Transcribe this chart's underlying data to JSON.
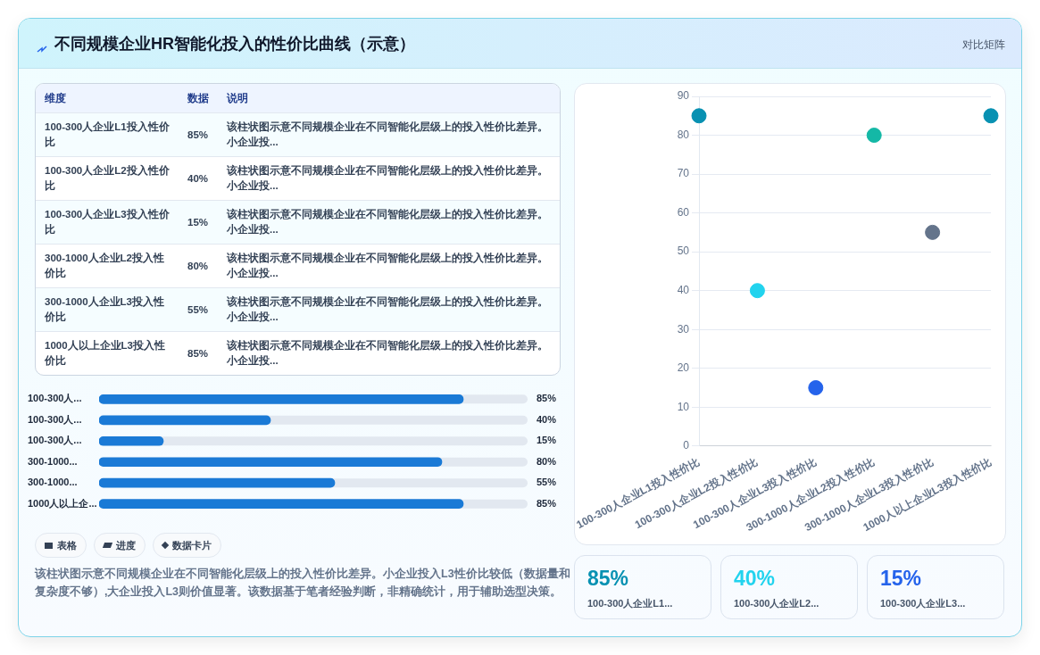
{
  "chart_data": [
    {
      "type": "other",
      "title": "不同规模企业HR智能化投入的性价比曲线（示意）",
      "categories": [
        "100-300人企业L1投入性价比",
        "100-300人企业L2投入性价比",
        "100-300人企业L3投入性价比",
        "300-1000人企业L2投入性价比",
        "300-1000人企业L3投入性价比",
        "1000人以上企业L3投入性价比"
      ],
      "value_labels": [
        "85%",
        "40%",
        "15%",
        "80%",
        "55%",
        "85%"
      ],
      "annotations": [
        "维度",
        "数据",
        "说明",
        "该柱状图示意不同规模企业在不同智能化层级上的投入性价比差异。小企业投...",
        "该柱状图示意不同规模企业在不同智能化层级上的投入性价比差异。小企业投...",
        "该柱状图示意不同规模企业在不同智能化层级上的投入性价比差异。小企业投...",
        "该柱状图示意不同规模企业在不同智能化层级上的投入性价比差异。小企业投...",
        "该柱状图示意不同规模企业在不同智能化层级上的投入性价比差异。小企业投...",
        "该柱状图示意不同规模企业在不同智能化层级上的投入性价比差异。小企业投..."
      ]
    },
    {
      "type": "bar",
      "orientation": "horizontal",
      "categories": [
        "100-300人...",
        "100-300人...",
        "100-300人...",
        "300-1000...",
        "300-1000...",
        "1000人以上企..."
      ],
      "values": [
        85,
        40,
        15,
        80,
        55,
        85
      ],
      "value_labels": [
        "85%",
        "40%",
        "15%",
        "80%",
        "55%",
        "85%"
      ],
      "color": "#1a7ad6",
      "xlim": [
        0,
        100
      ],
      "tick_labels": "y",
      "annotations": [
        "表格",
        "进度",
        "数据卡片",
        "该柱状图示意不同规模企业在不同智能化层级上的投入性价比差异。小企业投入L3性价比较低（数据量和复杂度不够）,大企业投入L3则价值显著。该数据基于笔者经验判断，非精确统计，用于辅助选型决策。"
      ]
    },
    {
      "type": "scatter",
      "subtitle": "对比矩阵",
      "categories": [
        "100-300人企业L1投入性价比",
        "100-300人企业L2投入性价比",
        "100-300人企业L3投入性价比",
        "300-1000人企业L2投入性价比",
        "300-1000人企业L3投入性价比",
        "1000人以上企业L3投入性价比"
      ],
      "values": [
        85,
        40,
        15,
        80,
        55,
        85
      ],
      "colors": [
        "#0891b2",
        "#22d3ee",
        "#2563eb",
        "#14b8a6",
        "#64748b",
        "#0891b2"
      ],
      "ylim": [
        0,
        90
      ],
      "yticks": [
        0,
        10,
        20,
        30,
        40,
        50,
        60,
        70,
        80,
        90
      ],
      "grid": "y",
      "marker": "circle"
    },
    {
      "type": "other",
      "categories": [
        "100-300人企业L1...",
        "100-300人企业L2...",
        "100-300人企业L3..."
      ],
      "values": [
        85,
        40,
        15
      ],
      "value_labels": [
        "85%",
        "40%",
        "15%"
      ],
      "colors": [
        "#0891b2",
        "#22d3ee",
        "#2563eb"
      ]
    }
  ]
}
